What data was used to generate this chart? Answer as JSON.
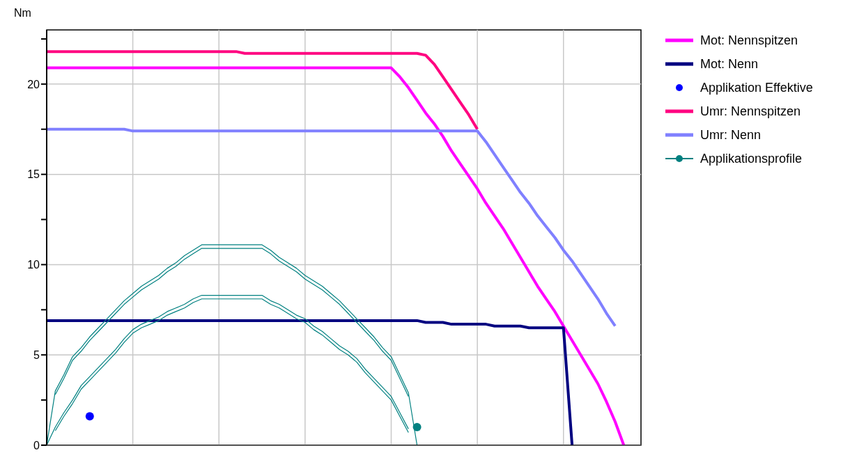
{
  "chart_data": {
    "type": "line",
    "ylabel": "Nm",
    "legend": "right",
    "grid": true,
    "tick_labels": "y",
    "categories": [
      null,
      null,
      null,
      null,
      null,
      null,
      null,
      null,
      null,
      null,
      null,
      null,
      null,
      null,
      null,
      null,
      null,
      null,
      null,
      null,
      null,
      null,
      null,
      null,
      null,
      null,
      null,
      null,
      null,
      null,
      null,
      null,
      null,
      null,
      null,
      null,
      null,
      null,
      null,
      null,
      null,
      null,
      null,
      null,
      null,
      null,
      null,
      null,
      null,
      null,
      null,
      null,
      null,
      null,
      null,
      null,
      null,
      null,
      null,
      null,
      null,
      null,
      null,
      null,
      null,
      null,
      null,
      null,
      null,
      null
    ],
    "ylim": [
      0,
      23
    ],
    "yticks": [
      0,
      {
        "value": 2.5,
        "label": null
      },
      5,
      {
        "value": 7.5,
        "label": null
      },
      10,
      {
        "value": 12.5,
        "label": null
      },
      15,
      {
        "value": 17.5,
        "label": null
      },
      20,
      {
        "value": 22.5,
        "label": null
      }
    ],
    "series": [
      {
        "name": "Mot: Nennspitzen",
        "color": "#ff00ff",
        "values": [
          20.9,
          20.9,
          20.9,
          20.9,
          20.9,
          20.9,
          20.9,
          20.9,
          20.9,
          20.9,
          20.9,
          20.9,
          20.9,
          20.9,
          20.9,
          20.9,
          20.9,
          20.9,
          20.9,
          20.9,
          20.9,
          20.9,
          20.9,
          20.9,
          20.9,
          20.9,
          20.9,
          20.9,
          20.9,
          20.9,
          20.9,
          20.9,
          20.9,
          20.9,
          20.9,
          20.9,
          20.9,
          20.9,
          20.9,
          20.9,
          20.9,
          20.4,
          19.8,
          19.1,
          18.4,
          17.8,
          17.1,
          16.3,
          15.6,
          14.9,
          14.2,
          13.4,
          12.7,
          12.0,
          11.2,
          10.4,
          9.6,
          8.8,
          8.1,
          7.4,
          6.6,
          5.8,
          5.0,
          4.2,
          3.4,
          2.4,
          1.3,
          0,
          null,
          null
        ]
      },
      {
        "name": "Mot: Nenn",
        "color": "#000080",
        "values": [
          6.9,
          6.9,
          6.9,
          6.9,
          6.9,
          6.9,
          6.9,
          6.9,
          6.9,
          6.9,
          6.9,
          6.9,
          6.9,
          6.9,
          6.9,
          6.9,
          6.9,
          6.9,
          6.9,
          6.9,
          6.9,
          6.9,
          6.9,
          6.9,
          6.9,
          6.9,
          6.9,
          6.9,
          6.9,
          6.9,
          6.9,
          6.9,
          6.9,
          6.9,
          6.9,
          6.9,
          6.9,
          6.9,
          6.9,
          6.9,
          6.9,
          6.9,
          6.9,
          6.9,
          6.8,
          6.8,
          6.8,
          6.7,
          6.7,
          6.7,
          6.7,
          6.7,
          6.6,
          6.6,
          6.6,
          6.6,
          6.5,
          6.5,
          6.5,
          6.5,
          6.5,
          0,
          null,
          null,
          null,
          null,
          null,
          null,
          null,
          null
        ]
      },
      {
        "name": "Applikation Effektive",
        "color": "#0000ff",
        "marker": "circle",
        "values": [
          null,
          null,
          null,
          null,
          null,
          1.6,
          null,
          null,
          null,
          null,
          null,
          null,
          null,
          null,
          null,
          null,
          null,
          null,
          null,
          null,
          null,
          null,
          null,
          null,
          null,
          null,
          null,
          null,
          null,
          null,
          null,
          null,
          null,
          null,
          null,
          null,
          null,
          null,
          null,
          null,
          null,
          null,
          null,
          null,
          null,
          null,
          null,
          null,
          null,
          null,
          null,
          null,
          null,
          null,
          null,
          null,
          null,
          null,
          null,
          null,
          null,
          null,
          null,
          null,
          null,
          null,
          null,
          null,
          null,
          null
        ]
      },
      {
        "name": "Umr: Nennspitzen",
        "color": "#ff0080",
        "values": [
          21.8,
          21.8,
          21.8,
          21.8,
          21.8,
          21.8,
          21.8,
          21.8,
          21.8,
          21.8,
          21.8,
          21.8,
          21.8,
          21.8,
          21.8,
          21.8,
          21.8,
          21.8,
          21.8,
          21.8,
          21.8,
          21.8,
          21.8,
          21.7,
          21.7,
          21.7,
          21.7,
          21.7,
          21.7,
          21.7,
          21.7,
          21.7,
          21.7,
          21.7,
          21.7,
          21.7,
          21.7,
          21.7,
          21.7,
          21.7,
          21.7,
          21.7,
          21.7,
          21.7,
          21.6,
          21.1,
          20.4,
          19.7,
          19.0,
          18.3,
          17.5,
          null,
          null,
          null,
          null,
          null,
          null,
          null,
          null,
          null,
          null,
          null,
          null,
          null,
          null,
          null,
          null,
          null,
          null,
          null
        ]
      },
      {
        "name": "Umr: Nenn",
        "color": "#8080ff",
        "values": [
          17.5,
          17.5,
          17.5,
          17.5,
          17.5,
          17.5,
          17.5,
          17.5,
          17.5,
          17.5,
          17.4,
          17.4,
          17.4,
          17.4,
          17.4,
          17.4,
          17.4,
          17.4,
          17.4,
          17.4,
          17.4,
          17.4,
          17.4,
          17.4,
          17.4,
          17.4,
          17.4,
          17.4,
          17.4,
          17.4,
          17.4,
          17.4,
          17.4,
          17.4,
          17.4,
          17.4,
          17.4,
          17.4,
          17.4,
          17.4,
          17.4,
          17.4,
          17.4,
          17.4,
          17.4,
          17.4,
          17.4,
          17.4,
          17.4,
          17.4,
          17.4,
          16.8,
          16.1,
          15.4,
          14.7,
          14.0,
          13.4,
          12.7,
          12.1,
          11.5,
          10.8,
          10.2,
          9.5,
          8.8,
          8.1,
          7.3,
          6.6,
          null,
          null,
          null
        ]
      },
      {
        "name": "Applikationsprofile",
        "color": "#008080",
        "values": [
          0,
          3.0,
          3.9,
          4.9,
          5.4,
          6.0,
          6.5,
          7.0,
          7.5,
          8.0,
          8.4,
          8.8,
          9.1,
          9.4,
          9.8,
          10.1,
          10.5,
          10.8,
          11.1,
          11.1,
          11.1,
          11.1,
          11.1,
          11.1,
          11.1,
          11.1,
          10.8,
          10.4,
          10.1,
          9.8,
          9.4,
          9.1,
          8.8,
          8.4,
          8.0,
          7.5,
          7.0,
          6.5,
          6.0,
          5.4,
          4.9,
          3.9,
          2.9,
          0,
          null,
          null,
          null,
          null,
          null,
          null,
          null,
          null,
          null,
          null,
          null,
          null,
          null,
          null,
          null,
          null,
          null,
          null,
          null,
          null,
          null,
          null,
          null,
          null,
          null,
          null
        ]
      },
      {
        "color": "#008080",
        "values": [
          null,
          2.8,
          3.7,
          4.7,
          5.2,
          5.8,
          6.3,
          6.8,
          7.3,
          7.8,
          8.2,
          8.6,
          8.9,
          9.2,
          9.6,
          9.9,
          10.3,
          10.6,
          10.9,
          10.9,
          10.9,
          10.9,
          10.9,
          10.9,
          10.9,
          10.9,
          10.6,
          10.2,
          9.9,
          9.6,
          9.2,
          8.9,
          8.6,
          8.2,
          7.8,
          7.3,
          6.8,
          6.3,
          5.8,
          5.2,
          4.7,
          3.7,
          2.7,
          null,
          null,
          null,
          null,
          null,
          null,
          null,
          null,
          null,
          null,
          null,
          null,
          null,
          null,
          null,
          null,
          null,
          null,
          null,
          null,
          null,
          null,
          null,
          null,
          null,
          null,
          null
        ]
      },
      {
        "color": "#008080",
        "values": [
          0,
          1.0,
          1.8,
          2.5,
          3.3,
          3.8,
          4.3,
          4.8,
          5.3,
          5.9,
          6.4,
          6.7,
          6.9,
          7.1,
          7.4,
          7.6,
          7.8,
          8.1,
          8.3,
          8.3,
          8.3,
          8.3,
          8.3,
          8.3,
          8.3,
          8.3,
          8.0,
          7.8,
          7.5,
          7.2,
          7.0,
          6.6,
          6.3,
          5.9,
          5.5,
          5.2,
          4.8,
          4.2,
          3.7,
          3.2,
          2.7,
          1.8,
          0.9,
          null,
          null,
          null,
          null,
          null,
          null,
          null,
          null,
          null,
          null,
          null,
          null,
          null,
          null,
          null,
          null,
          null,
          null,
          null,
          null,
          null,
          null,
          null,
          null,
          null,
          null,
          null
        ]
      },
      {
        "color": "#008080",
        "values": [
          null,
          0.8,
          1.6,
          2.3,
          3.1,
          3.6,
          4.1,
          4.6,
          5.1,
          5.7,
          6.2,
          6.5,
          6.7,
          6.9,
          7.2,
          7.4,
          7.6,
          7.9,
          8.1,
          8.1,
          8.1,
          8.1,
          8.1,
          8.1,
          8.1,
          8.1,
          7.8,
          7.6,
          7.3,
          7.0,
          6.8,
          6.4,
          6.1,
          5.7,
          5.3,
          5.0,
          4.6,
          4.0,
          3.5,
          3.0,
          2.5,
          1.6,
          0.7,
          null,
          null,
          null,
          null,
          null,
          null,
          null,
          null,
          null,
          null,
          null,
          null,
          null,
          null,
          null,
          null,
          null,
          null,
          null,
          null,
          null,
          null,
          null,
          null,
          null,
          null,
          null
        ]
      },
      {
        "color": "#008080",
        "marker": "circle",
        "values": [
          null,
          null,
          null,
          null,
          null,
          null,
          null,
          null,
          null,
          null,
          null,
          null,
          null,
          null,
          null,
          null,
          null,
          null,
          null,
          null,
          null,
          null,
          null,
          null,
          null,
          null,
          null,
          null,
          null,
          null,
          null,
          null,
          null,
          null,
          null,
          null,
          null,
          null,
          null,
          null,
          null,
          null,
          null,
          1.0,
          null,
          null,
          null,
          null,
          null,
          null,
          null,
          null,
          null,
          null,
          null,
          null,
          null,
          null,
          null,
          null,
          null,
          null,
          null,
          null,
          null,
          null,
          null,
          null,
          null,
          null
        ]
      }
    ]
  }
}
